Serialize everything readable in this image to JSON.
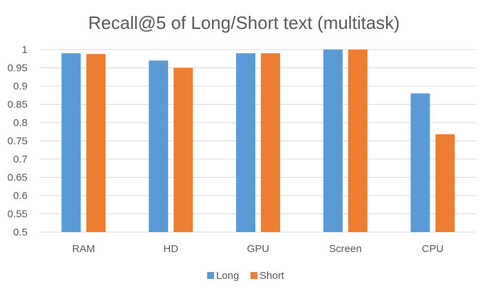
{
  "chart_data": {
    "type": "bar",
    "title": "Recall@5 of Long/Short text (multitask)",
    "xlabel": "",
    "ylabel": "",
    "categories": [
      "RAM",
      "HD",
      "GPU",
      "Screen",
      "CPU"
    ],
    "series": [
      {
        "name": "Long",
        "color": "#5B9BD5",
        "values": [
          0.99,
          0.97,
          0.99,
          1.0,
          0.88
        ]
      },
      {
        "name": "Short",
        "color": "#ED7D31",
        "values": [
          0.988,
          0.95,
          0.99,
          1.0,
          0.768
        ]
      }
    ],
    "ylim": [
      0.5,
      1.0
    ],
    "yticks": [
      "0.5",
      "0.55",
      "0.6",
      "0.65",
      "0.7",
      "0.75",
      "0.8",
      "0.85",
      "0.9",
      "0.95",
      "1"
    ],
    "grid": true,
    "legend_position": "bottom",
    "gridline_color": "#d9d9d9",
    "axis_line_color": "#d9d9d9"
  }
}
